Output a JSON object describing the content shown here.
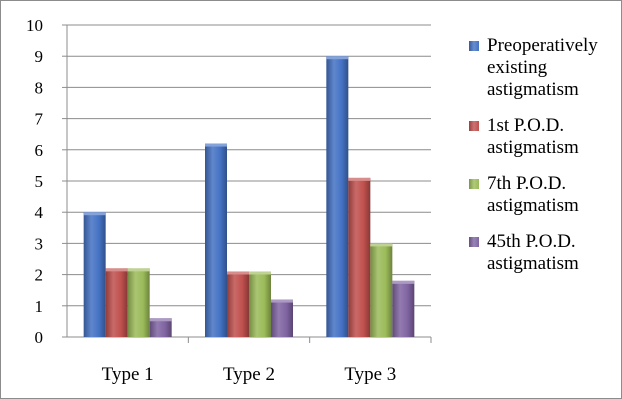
{
  "chart_data": {
    "type": "bar",
    "categories": [
      "Type 1",
      "Type 2",
      "Type 3"
    ],
    "series": [
      {
        "name": "Preoperatively existing astigmatism",
        "values": [
          4.0,
          6.2,
          9.0
        ],
        "color": "#4472C4"
      },
      {
        "name": "1st P.O.D. astigmatism",
        "values": [
          2.2,
          2.1,
          5.1
        ],
        "color": "#C0504D"
      },
      {
        "name": "7th P.O.D. astigmatism",
        "values": [
          2.2,
          2.1,
          3.0
        ],
        "color": "#9BBB59"
      },
      {
        "name": "45th P.O.D. astigmatism",
        "values": [
          0.6,
          1.2,
          1.8
        ],
        "color": "#8064A2"
      }
    ],
    "ylim": [
      0,
      10
    ],
    "yticks": [
      "0",
      "1",
      "2",
      "3",
      "4",
      "5",
      "6",
      "7",
      "8",
      "9",
      "10"
    ],
    "title": "",
    "xlabel": "",
    "ylabel": "",
    "grid": true,
    "legend_position": "right"
  }
}
